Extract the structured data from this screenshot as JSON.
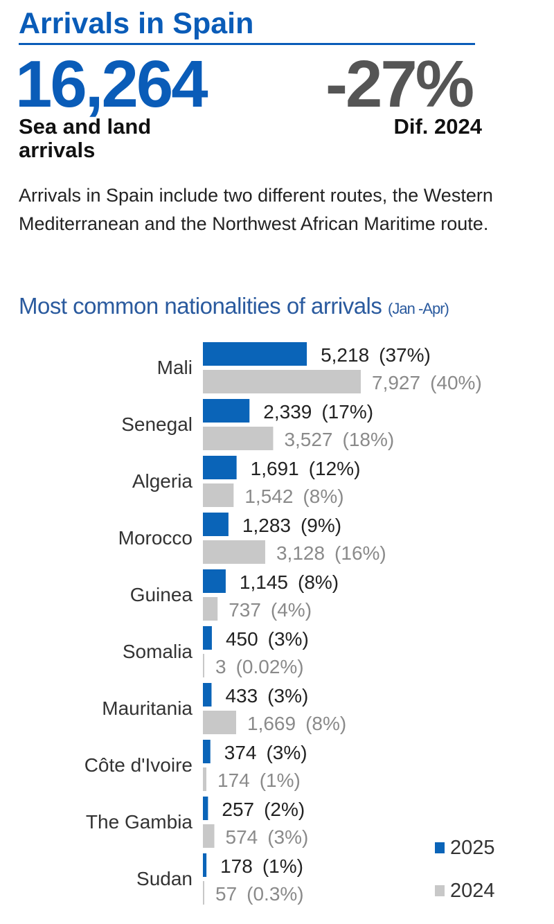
{
  "header": {
    "title": "Arrivals in Spain",
    "total": "16,264",
    "total_label": "Sea and land arrivals",
    "diff": "-27%",
    "diff_label": "Dif. 2024",
    "description": "Arrivals in Spain include two different routes, the Western Mediterranean and the Northwest African Maritime route."
  },
  "chart_data": {
    "type": "bar",
    "orientation": "horizontal",
    "title": "Most common nationalities of arrivals",
    "title_note": "(Jan -Apr)",
    "categories": [
      "Mali",
      "Senegal",
      "Algeria",
      "Morocco",
      "Guinea",
      "Somalia",
      "Mauritania",
      "Côte d'Ivoire",
      "The Gambia",
      "Sudan"
    ],
    "series": [
      {
        "name": "2025",
        "color": "#0a64b8",
        "values": [
          5218,
          2339,
          1691,
          1283,
          1145,
          450,
          433,
          374,
          257,
          178
        ],
        "labels": [
          "5,218",
          "2,339",
          "1,691",
          "1,283",
          "1,145",
          "450",
          "433",
          "374",
          "257",
          "178"
        ],
        "shares": [
          "(37%)",
          "(17%)",
          "(12%)",
          "(9%)",
          "(8%)",
          "(3%)",
          "(3%)",
          "(3%)",
          "(2%)",
          "(1%)"
        ]
      },
      {
        "name": "2024",
        "color": "#c8c8c8",
        "values": [
          7927,
          3527,
          1542,
          3128,
          737,
          3,
          1669,
          174,
          574,
          57
        ],
        "labels": [
          "7,927",
          "3,527",
          "1,542",
          "3,128",
          "737",
          "3",
          "1,669",
          "174",
          "574",
          "57"
        ],
        "shares": [
          "(40%)",
          "(18%)",
          "(8%)",
          "(16%)",
          "(4%)",
          "(0.02%)",
          "(8%)",
          "(1%)",
          "(3%)",
          "(0.3%)"
        ]
      }
    ],
    "legend_position": "bottom-right",
    "grid": false
  }
}
